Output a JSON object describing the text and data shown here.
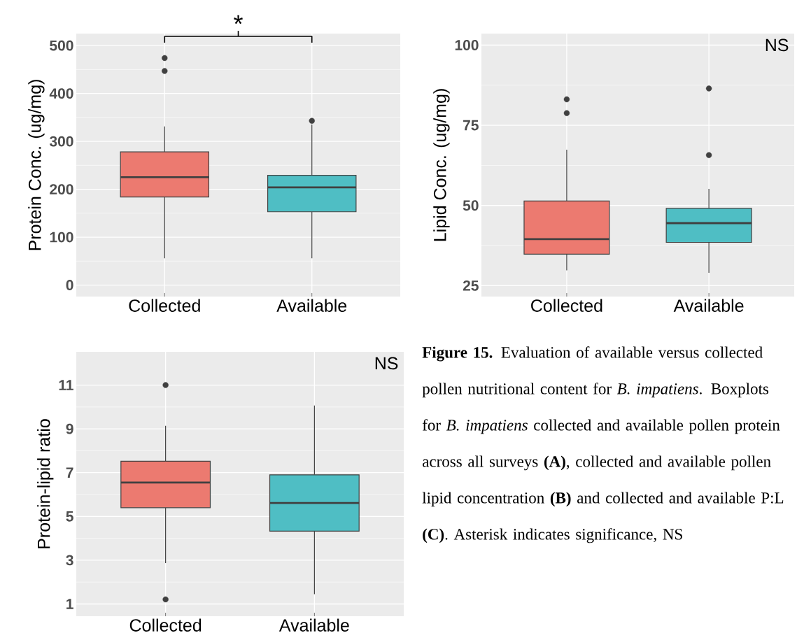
{
  "chart_data": [
    {
      "type": "box",
      "ylabel": "Protein Conc. (ug/mg)",
      "categories": [
        "Collected",
        "Available"
      ],
      "colors": [
        "#ec7a70",
        "#4fbec4"
      ],
      "boxes": [
        {
          "low": 56,
          "q1": 184,
          "median": 225,
          "q3": 278,
          "high": 331,
          "outliers": [
            447,
            474
          ]
        },
        {
          "low": 56,
          "q1": 153,
          "median": 204,
          "q3": 229,
          "high": 335,
          "outliers": [
            343
          ]
        }
      ],
      "ylim": [
        -24,
        525
      ],
      "yticks": [
        0,
        100,
        200,
        300,
        400,
        500
      ],
      "grid": true,
      "annotations": [
        "*"
      ]
    },
    {
      "type": "box",
      "ylabel": "Lipid Conc. (ug/mg)",
      "categories": [
        "Collected",
        "Available"
      ],
      "colors": [
        "#ec7a70",
        "#4fbec4"
      ],
      "boxes": [
        {
          "low": 29.8,
          "q1": 34.8,
          "median": 39.5,
          "q3": 51.4,
          "high": 67.4,
          "outliers": [
            78.8,
            83.1
          ]
        },
        {
          "low": 29.0,
          "q1": 38.5,
          "median": 44.5,
          "q3": 49.1,
          "high": 55.2,
          "outliers": [
            65.7,
            86.5
          ]
        }
      ],
      "ylim": [
        21.6,
        103.6
      ],
      "yticks": [
        25,
        50,
        75,
        100
      ],
      "grid": true,
      "annotations": [
        "NS"
      ]
    },
    {
      "type": "box",
      "ylabel": "Protein-lipid ratio",
      "categories": [
        "Collected",
        "Available"
      ],
      "colors": [
        "#ec7a70",
        "#4fbec4"
      ],
      "boxes": [
        {
          "low": 2.87,
          "q1": 5.4,
          "median": 6.55,
          "q3": 7.52,
          "high": 9.14,
          "outliers": [
            1.21,
            11.0
          ]
        },
        {
          "low": 1.45,
          "q1": 4.33,
          "median": 5.61,
          "q3": 6.9,
          "high": 10.07
        }
      ],
      "ylim": [
        0.44,
        12.52
      ],
      "yticks": [
        1,
        3,
        5,
        7,
        9,
        11
      ],
      "grid": true,
      "annotations": [
        "NS"
      ]
    },
    {
      "type": "other",
      "annotations": [
        "**Figure 15.** Evaluation of available versus collected pollen nutritional content for *B. impatiens*. Boxplots for *B. impatiens* collected and available pollen protein across all surveys **(A)**, collected and available pollen lipid concentration **(B)** and collected and available P:L **(C)**. Asterisk indicates significance, NS"
      ]
    }
  ]
}
